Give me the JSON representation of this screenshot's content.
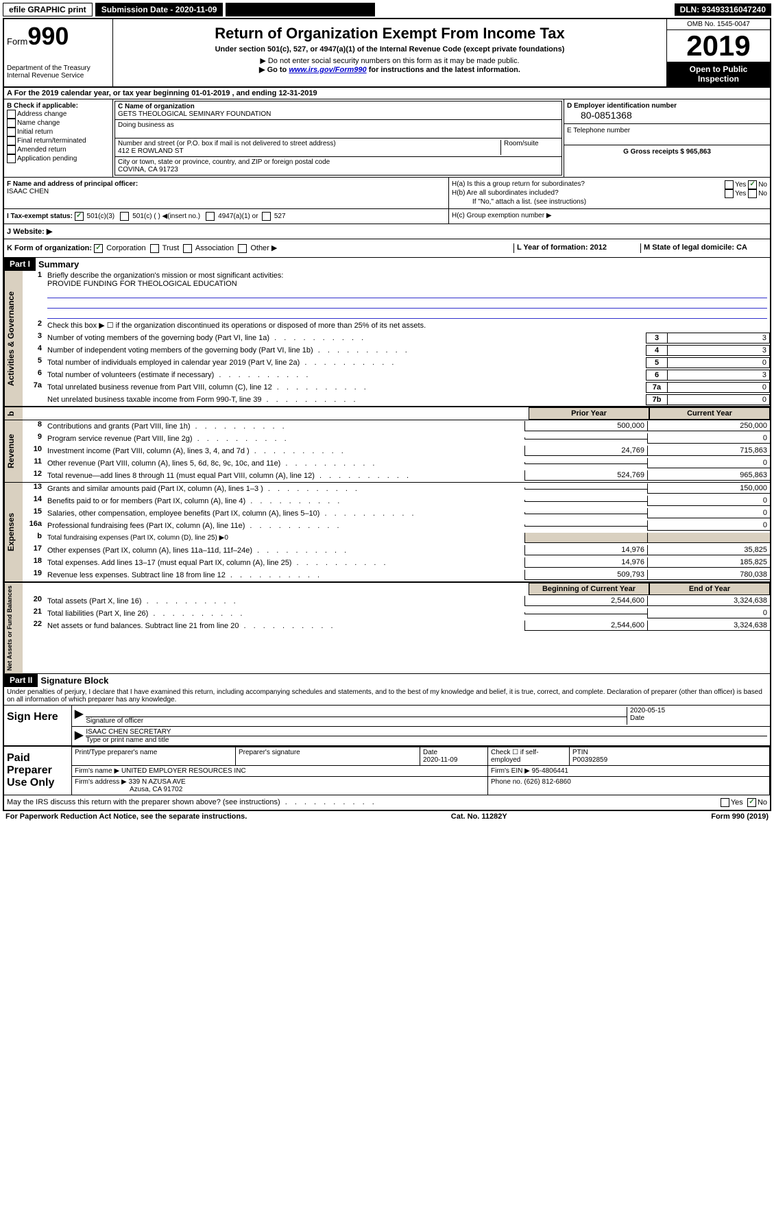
{
  "topbar": {
    "efile": "efile GRAPHIC print",
    "submission_label": "Submission Date - 2020-11-09",
    "dln": "DLN: 93493316047240"
  },
  "header": {
    "form_label": "Form",
    "form_number": "990",
    "dept": "Department of the Treasury",
    "irs": "Internal Revenue Service",
    "title": "Return of Organization Exempt From Income Tax",
    "subtitle": "Under section 501(c), 527, or 4947(a)(1) of the Internal Revenue Code (except private foundations)",
    "note1": "▶ Do not enter social security numbers on this form as it may be made public.",
    "note2_pre": "▶ Go to ",
    "note2_link": "www.irs.gov/Form990",
    "note2_post": " for instructions and the latest information.",
    "omb": "OMB No. 1545-0047",
    "year": "2019",
    "open_public": "Open to Public Inspection"
  },
  "section_a": "A For the 2019 calendar year, or tax year beginning 01-01-2019   , and ending 12-31-2019",
  "section_b": {
    "label": "B Check if applicable:",
    "opts": [
      "Address change",
      "Name change",
      "Initial return",
      "Final return/terminated",
      "Amended return",
      "Application pending"
    ]
  },
  "section_c": {
    "name_label": "C Name of organization",
    "name": "GETS THEOLOGICAL SEMINARY FOUNDATION",
    "dba_label": "Doing business as",
    "street_label": "Number and street (or P.O. box if mail is not delivered to street address)",
    "room_label": "Room/suite",
    "street": "412 E ROWLAND ST",
    "city_label": "City or town, state or province, country, and ZIP or foreign postal code",
    "city": "COVINA, CA  91723"
  },
  "section_d": {
    "label": "D Employer identification number",
    "ein": "80-0851368",
    "e_label": "E Telephone number",
    "g_label": "G Gross receipts $ 965,863"
  },
  "section_f": {
    "label": "F  Name and address of principal officer:",
    "name": "ISAAC CHEN"
  },
  "section_h": {
    "a": "H(a)  Is this a group return for subordinates?",
    "b": "H(b)  Are all subordinates included?",
    "b_note": "If \"No,\" attach a list. (see instructions)",
    "c": "H(c)  Group exemption number ▶",
    "yes": "Yes",
    "no": "No"
  },
  "section_i": {
    "label": "I    Tax-exempt status:",
    "opt1": "501(c)(3)",
    "opt2": "501(c) (   ) ◀(insert no.)",
    "opt3": "4947(a)(1) or",
    "opt4": "527"
  },
  "section_j": "J    Website: ▶",
  "section_k": "K Form of organization:",
  "k_opts": [
    "Corporation",
    "Trust",
    "Association",
    "Other ▶"
  ],
  "section_l": {
    "label": "L Year of formation: 2012"
  },
  "section_m": {
    "label": "M State of legal domicile: CA"
  },
  "part1": {
    "header": "Part I",
    "title": "Summary",
    "q1": "Briefly describe the organization's mission or most significant activities:",
    "q1_ans": "PROVIDE FUNDING FOR THEOLOGICAL EDUCATION",
    "q2": "Check this box ▶ ☐  if the organization discontinued its operations or disposed of more than 25% of its net assets.",
    "rows": [
      {
        "n": "3",
        "d": "Number of voting members of the governing body (Part VI, line 1a)",
        "box": "3",
        "v": "3"
      },
      {
        "n": "4",
        "d": "Number of independent voting members of the governing body (Part VI, line 1b)",
        "box": "4",
        "v": "3"
      },
      {
        "n": "5",
        "d": "Total number of individuals employed in calendar year 2019 (Part V, line 2a)",
        "box": "5",
        "v": "0"
      },
      {
        "n": "6",
        "d": "Total number of volunteers (estimate if necessary)",
        "box": "6",
        "v": "3"
      },
      {
        "n": "7a",
        "d": "Total unrelated business revenue from Part VIII, column (C), line 12",
        "box": "7a",
        "v": "0"
      },
      {
        "n": "",
        "d": "Net unrelated business taxable income from Form 990-T, line 39",
        "box": "7b",
        "v": "0"
      }
    ],
    "col_prior": "Prior Year",
    "col_current": "Current Year",
    "col_begin": "Beginning of Current Year",
    "col_end": "End of Year"
  },
  "revenue": {
    "label": "Revenue",
    "rows": [
      {
        "n": "8",
        "d": "Contributions and grants (Part VIII, line 1h)",
        "p": "500,000",
        "c": "250,000"
      },
      {
        "n": "9",
        "d": "Program service revenue (Part VIII, line 2g)",
        "p": "",
        "c": "0"
      },
      {
        "n": "10",
        "d": "Investment income (Part VIII, column (A), lines 3, 4, and 7d )",
        "p": "24,769",
        "c": "715,863"
      },
      {
        "n": "11",
        "d": "Other revenue (Part VIII, column (A), lines 5, 6d, 8c, 9c, 10c, and 11e)",
        "p": "",
        "c": "0"
      },
      {
        "n": "12",
        "d": "Total revenue—add lines 8 through 11 (must equal Part VIII, column (A), line 12)",
        "p": "524,769",
        "c": "965,863"
      }
    ]
  },
  "expenses": {
    "label": "Expenses",
    "rows": [
      {
        "n": "13",
        "d": "Grants and similar amounts paid (Part IX, column (A), lines 1–3 )",
        "p": "",
        "c": "150,000"
      },
      {
        "n": "14",
        "d": "Benefits paid to or for members (Part IX, column (A), line 4)",
        "p": "",
        "c": "0"
      },
      {
        "n": "15",
        "d": "Salaries, other compensation, employee benefits (Part IX, column (A), lines 5–10)",
        "p": "",
        "c": "0"
      },
      {
        "n": "16a",
        "d": "Professional fundraising fees (Part IX, column (A), line 11e)",
        "p": "",
        "c": "0"
      },
      {
        "n": "b",
        "d": "Total fundraising expenses (Part IX, column (D), line 25) ▶0",
        "p": null,
        "c": null
      },
      {
        "n": "17",
        "d": "Other expenses (Part IX, column (A), lines 11a–11d, 11f–24e)",
        "p": "14,976",
        "c": "35,825"
      },
      {
        "n": "18",
        "d": "Total expenses. Add lines 13–17 (must equal Part IX, column (A), line 25)",
        "p": "14,976",
        "c": "185,825"
      },
      {
        "n": "19",
        "d": "Revenue less expenses. Subtract line 18 from line 12",
        "p": "509,793",
        "c": "780,038"
      }
    ]
  },
  "netassets": {
    "label": "Net Assets or Fund Balances",
    "rows": [
      {
        "n": "20",
        "d": "Total assets (Part X, line 16)",
        "p": "2,544,600",
        "c": "3,324,638"
      },
      {
        "n": "21",
        "d": "Total liabilities (Part X, line 26)",
        "p": "",
        "c": "0"
      },
      {
        "n": "22",
        "d": "Net assets or fund balances. Subtract line 21 from line 20",
        "p": "2,544,600",
        "c": "3,324,638"
      }
    ]
  },
  "governance_label": "Activities & Governance",
  "part2": {
    "header": "Part II",
    "title": "Signature Block",
    "decl": "Under penalties of perjury, I declare that I have examined this return, including accompanying schedules and statements, and to the best of my knowledge and belief, it is true, correct, and complete. Declaration of preparer (other than officer) is based on all information of which preparer has any knowledge."
  },
  "sign": {
    "label": "Sign Here",
    "sig_officer": "Signature of officer",
    "date": "2020-05-15",
    "date_label": "Date",
    "name": "ISAAC CHEN  SECRETARY",
    "name_label": "Type or print name and title"
  },
  "paid": {
    "label": "Paid Preparer Use Only",
    "h1": "Print/Type preparer's name",
    "h2": "Preparer's signature",
    "h3": "Date",
    "h3v": "2020-11-09",
    "h4": "Check ☐ if self-employed",
    "h5": "PTIN",
    "h5v": "P00392859",
    "firm_name_l": "Firm's name    ▶",
    "firm_name": "UNITED EMPLOYER RESOURCES INC",
    "firm_ein_l": "Firm's EIN ▶",
    "firm_ein": "95-4806441",
    "firm_addr_l": "Firm's address ▶",
    "firm_addr": "339 N AZUSA AVE",
    "firm_city": "Azusa, CA  91702",
    "phone_l": "Phone no.",
    "phone": "(626) 812-6860"
  },
  "discuss": "May the IRS discuss this return with the preparer shown above? (see instructions)",
  "footer": {
    "left": "For Paperwork Reduction Act Notice, see the separate instructions.",
    "mid": "Cat. No. 11282Y",
    "right": "Form 990 (2019)"
  }
}
